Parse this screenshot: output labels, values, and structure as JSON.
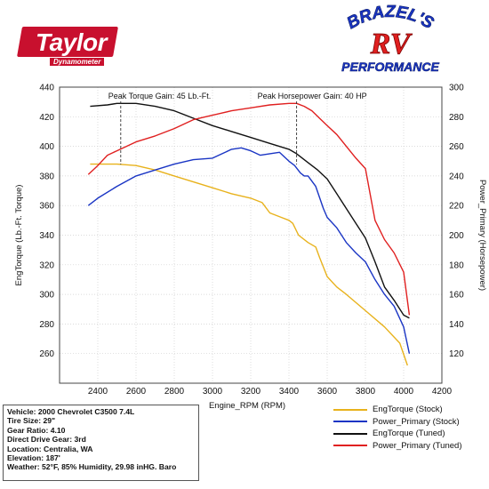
{
  "chart_data": {
    "type": "line",
    "xlabel": "Engine_RPM (RPM)",
    "ylabel_left": "EngTorque (Lb.-Ft. Torque)",
    "ylabel_right": "Power_Primary (Horsepower)",
    "xlim": [
      2200,
      4200
    ],
    "ylim_left": [
      240,
      440
    ],
    "ylim_right": [
      100,
      300
    ],
    "x_ticks": [
      2400,
      2600,
      2800,
      3000,
      3200,
      3400,
      3600,
      3800,
      4000,
      4200
    ],
    "y_left_ticks": [
      260,
      280,
      300,
      320,
      340,
      360,
      380,
      400,
      420,
      440
    ],
    "y_right_ticks": [
      120,
      140,
      160,
      180,
      200,
      220,
      240,
      260,
      280,
      300
    ],
    "grid": true,
    "legend_position": "bottom-right",
    "annotations": [
      {
        "text": "Peak Torque Gain: 45 Lb.-Ft.",
        "rpm": 2520
      },
      {
        "text": "Peak Horsepower Gain: 40 HP",
        "rpm": 3440
      }
    ],
    "series": [
      {
        "name": "EngTorque (Stock)",
        "axis": "left",
        "color": "#e8b21c",
        "x": [
          2360,
          2400,
          2500,
          2600,
          2700,
          2800,
          2900,
          3000,
          3100,
          3200,
          3260,
          3300,
          3360,
          3400,
          3420,
          3450,
          3500,
          3540,
          3560,
          3600,
          3650,
          3700,
          3800,
          3900,
          3980,
          4020
        ],
        "y": [
          388,
          388,
          388,
          387,
          384,
          380,
          376,
          372,
          368,
          365,
          362,
          355,
          352,
          350,
          348,
          340,
          335,
          332,
          325,
          312,
          305,
          300,
          289,
          278,
          267,
          252
        ]
      },
      {
        "name": "Power_Primary (Stock)",
        "axis": "right",
        "color": "#1a35c4",
        "x": [
          2350,
          2400,
          2500,
          2600,
          2700,
          2800,
          2900,
          3000,
          3050,
          3100,
          3150,
          3200,
          3250,
          3300,
          3350,
          3400,
          3430,
          3460,
          3480,
          3500,
          3540,
          3580,
          3600,
          3650,
          3700,
          3750,
          3800,
          3850,
          3900,
          3950,
          4000,
          4030
        ],
        "y": [
          220,
          225,
          233,
          240,
          244,
          248,
          251,
          252,
          255,
          258,
          259,
          257,
          254,
          255,
          256,
          250,
          247,
          242,
          240,
          240,
          233,
          218,
          212,
          205,
          195,
          188,
          182,
          170,
          160,
          152,
          138,
          120
        ]
      },
      {
        "name": "EngTorque (Tuned)",
        "axis": "left",
        "color": "#111111",
        "x": [
          2360,
          2450,
          2500,
          2600,
          2700,
          2800,
          2900,
          3000,
          3100,
          3200,
          3300,
          3400,
          3440,
          3500,
          3550,
          3600,
          3650,
          3700,
          3750,
          3800,
          3850,
          3900,
          3950,
          4000,
          4030
        ],
        "y": [
          427,
          428,
          429,
          429,
          427,
          424,
          419,
          414,
          410,
          406,
          402,
          398,
          395,
          389,
          384,
          378,
          368,
          358,
          348,
          338,
          322,
          305,
          296,
          286,
          284
        ]
      },
      {
        "name": "Power_Primary (Tuned)",
        "axis": "right",
        "color": "#e02020",
        "x": [
          2350,
          2400,
          2450,
          2500,
          2600,
          2700,
          2800,
          2900,
          3000,
          3100,
          3200,
          3300,
          3400,
          3440,
          3480,
          3520,
          3560,
          3600,
          3650,
          3700,
          3750,
          3800,
          3850,
          3900,
          3950,
          4000,
          4030
        ],
        "y": [
          241,
          247,
          254,
          257,
          263,
          267,
          272,
          278,
          281,
          284,
          286,
          288,
          289,
          289,
          287,
          284,
          279,
          274,
          268,
          260,
          252,
          245,
          210,
          197,
          188,
          175,
          146
        ]
      }
    ]
  },
  "info_box": {
    "lines": [
      "Vehicle: 2000 Chevrolet C3500 7.4L",
      "Tire Size: 29\"",
      "Gear Ratio: 4.10",
      "Direct Drive Gear: 3rd",
      "Location: Centralia, WA",
      "Elevation: 187'",
      "Weather: 52°F, 85% Humidity, 29.98 inHG. Baro"
    ]
  },
  "logos": {
    "taylor": {
      "name": "Taylor",
      "subtitle": "Dynamometer",
      "color": "#c8102e"
    },
    "brazel": {
      "line1": "BRAZEL'S",
      "line2": "RV",
      "line3": "PERFORMANCE",
      "colors": [
        "#1a35c4",
        "#e02020"
      ]
    }
  }
}
